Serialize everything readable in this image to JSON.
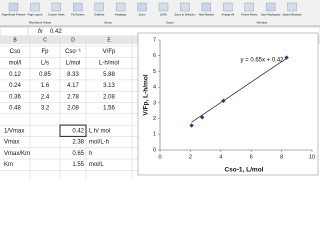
{
  "ribbon": {
    "buttons": [
      "Page Break Preview",
      "Page Layout",
      "Custom Views",
      "Full Screen",
      "Gridlines",
      "Headings",
      "Zoom",
      "100%",
      "Zoom to Selection",
      "New Window",
      "Arrange All",
      "Freeze Panes",
      "Save Workspace",
      "Switch Windows"
    ],
    "groups": [
      "Workbook Views",
      "Show",
      "Zoom",
      "Window"
    ]
  },
  "formula_bar": {
    "fx": "fx",
    "content": "0.42"
  },
  "sheet": {
    "columns": [
      "B",
      "C",
      "D",
      "E"
    ],
    "header_rows": [
      [
        "Cso",
        "Fp",
        "Cso⁻¹",
        "V/Fp"
      ],
      [
        "mol/l",
        "L/s",
        "L/mol",
        "L-h/mol"
      ]
    ],
    "data_rows": [
      [
        0.12,
        0.85,
        8.33,
        5.88
      ],
      [
        0.24,
        1.6,
        4.17,
        3.13
      ],
      [
        0.36,
        2.4,
        2.78,
        2.08
      ],
      [
        0.48,
        3.2,
        2.08,
        1.56
      ]
    ],
    "results": [
      {
        "label": "1/Vmax",
        "value": 0.42,
        "unit": "L h/ mol"
      },
      {
        "label": "Vmax",
        "value": 2.38,
        "unit": "mol/L-h"
      },
      {
        "label": "Vmax/Km",
        "value": 0.65,
        "unit": "h"
      },
      {
        "label": "Km",
        "value": 1.55,
        "unit": "mol/L"
      }
    ]
  },
  "chart_data": {
    "type": "scatter",
    "x_label": "Cso-1, L/mol",
    "y_label": "V/Fp, L-h/mol",
    "x": [
      8.33,
      4.17,
      2.78,
      2.08
    ],
    "series": [
      {
        "color": "#1f3f7a",
        "values": [
          5.88,
          3.13,
          2.08,
          1.56
        ]
      }
    ],
    "trendline": {
      "label": "y = 0.65x + 0.42",
      "slope": 0.65,
      "intercept": 0.42
    },
    "xlim": [
      0,
      10
    ],
    "xticks": [
      0,
      2,
      4,
      6,
      8,
      10
    ],
    "ylim": [
      0,
      7
    ],
    "yticks": [
      0,
      1,
      2,
      3,
      4,
      5,
      6,
      7
    ],
    "grid": false
  }
}
